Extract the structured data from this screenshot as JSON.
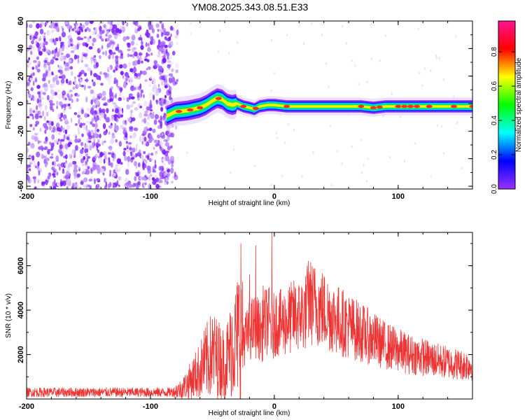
{
  "title": "YM08.2025.343.08.51.E33",
  "chart_data": [
    {
      "type": "heatmap",
      "xlabel": "Height of straight line (km)",
      "ylabel": "Frequency (Hz)",
      "xlim": [
        -200,
        160
      ],
      "ylim": [
        -62,
        60
      ],
      "x_ticks": [
        -200,
        -100,
        0,
        100
      ],
      "y_ticks": [
        60,
        40,
        20,
        0,
        -20,
        -40,
        -60
      ],
      "noise_region_x": [
        -200,
        -82
      ],
      "ridge": {
        "x": [
          -87,
          -80,
          -70,
          -60,
          -55,
          -50,
          -46,
          -42,
          -38,
          -34,
          -30,
          -25,
          -20,
          -16,
          -12,
          -5,
          0,
          10,
          20,
          40,
          60,
          70,
          80,
          90,
          100,
          110,
          120,
          130,
          140,
          150,
          160
        ],
        "y": [
          -9,
          -6,
          -5,
          -3,
          -1,
          2,
          4,
          3,
          0,
          -1,
          0,
          -2,
          -3,
          -4,
          -2,
          -1,
          -1,
          -2,
          -2,
          -2,
          -2,
          -2,
          -3,
          -2,
          -2,
          -2,
          -2,
          -2,
          -2,
          -2,
          -2
        ],
        "peak_amplitude_x": [
          -77,
          -68,
          -60,
          -45,
          -25,
          -15,
          10,
          70,
          80,
          85,
          100,
          105,
          110,
          115,
          125,
          145,
          160
        ]
      },
      "colorbar": {
        "label": "Normalized spectral amplitude",
        "ticks": [
          0.0,
          0.2,
          0.4,
          0.6,
          0.8
        ],
        "tick_labels": [
          "0.0",
          "0.2",
          "0.4",
          "0.6",
          "0.8"
        ],
        "range": [
          0,
          0.98
        ],
        "stops": [
          "#9b30ff",
          "#0000ff",
          "#00ffff",
          "#00ff00",
          "#ffff00",
          "#ff0000",
          "#ff1493"
        ]
      }
    },
    {
      "type": "line",
      "xlabel": "Height of straight line (km)",
      "ylabel": "SNR (10 * v/v)",
      "xlim": [
        -200,
        160
      ],
      "ylim": [
        0,
        7500
      ],
      "x_ticks": [
        -200,
        -100,
        0,
        100
      ],
      "y_ticks": [
        2000,
        4000,
        6000
      ],
      "color": "#ee3333",
      "series": [
        {
          "x": [
            -200,
            -180,
            -160,
            -140,
            -120,
            -100,
            -85,
            -80,
            -75,
            -70,
            -65,
            -60,
            -55,
            -50,
            -45,
            -40,
            -35,
            -30,
            -28,
            -26,
            -22,
            -20,
            -15,
            -10,
            -8,
            -5,
            -3,
            -1,
            0,
            5,
            10,
            15,
            20,
            25,
            28,
            30,
            35,
            40,
            50,
            60,
            70,
            80,
            90,
            100,
            110,
            120,
            130,
            140,
            150,
            160
          ],
          "values": [
            300,
            300,
            300,
            300,
            300,
            300,
            300,
            350,
            450,
            700,
            1000,
            1300,
            1700,
            2000,
            1800,
            1600,
            2200,
            2800,
            3200,
            2700,
            2800,
            3100,
            3300,
            3000,
            3400,
            3600,
            3300,
            3000,
            3500,
            3400,
            3500,
            3700,
            3800,
            3900,
            4500,
            4300,
            4200,
            4000,
            3600,
            3300,
            3000,
            2700,
            2400,
            2200,
            2000,
            1900,
            1750,
            1650,
            1550,
            1500
          ],
          "spikes": [
            {
              "x": -57,
              "y": 2500
            },
            {
              "x": -48,
              "y": 2600
            },
            {
              "x": -34,
              "y": 3700
            },
            {
              "x": -27,
              "y": 7000
            },
            {
              "x": -20,
              "y": 5600
            },
            {
              "x": -15,
              "y": 6900
            },
            {
              "x": -9,
              "y": 5100
            },
            {
              "x": -2,
              "y": 7500
            },
            {
              "x": 20,
              "y": 4900
            },
            {
              "x": 29,
              "y": 5600
            }
          ]
        }
      ]
    }
  ]
}
